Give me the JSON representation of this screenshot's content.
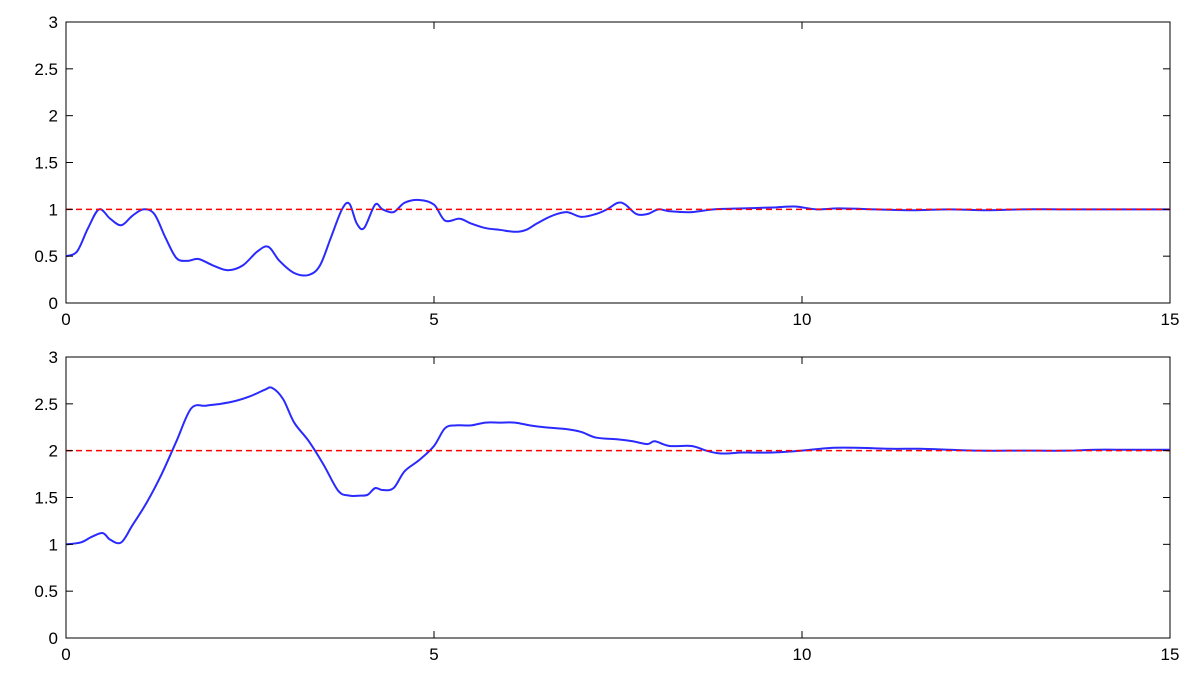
{
  "chart_data": [
    {
      "type": "line",
      "title": "",
      "xlabel": "",
      "ylabel": "",
      "xlim": [
        0,
        15
      ],
      "ylim": [
        0,
        3
      ],
      "x_ticks": [
        0,
        5,
        10,
        15
      ],
      "x_tick_labels": [
        "0",
        "5",
        "10",
        "15"
      ],
      "y_ticks": [
        0,
        0.5,
        1,
        1.5,
        2,
        2.5,
        3
      ],
      "y_tick_labels": [
        "0",
        "0.5",
        "1",
        "1.5",
        "2",
        "2.5",
        "3"
      ],
      "grid": false,
      "series": [
        {
          "color": "#2a2aff",
          "style": "solid",
          "x": [
            0,
            0.15,
            0.3,
            0.45,
            0.6,
            0.75,
            0.9,
            1.05,
            1.2,
            1.35,
            1.5,
            1.65,
            1.8,
            2.0,
            2.2,
            2.4,
            2.6,
            2.75,
            2.9,
            3.1,
            3.3,
            3.45,
            3.6,
            3.75,
            3.85,
            3.95,
            4.05,
            4.2,
            4.3,
            4.45,
            4.6,
            4.8,
            5.0,
            5.15,
            5.35,
            5.5,
            5.7,
            5.9,
            6.1,
            6.25,
            6.4,
            6.6,
            6.8,
            7.0,
            7.2,
            7.35,
            7.5,
            7.6,
            7.75,
            7.9,
            8.05,
            8.2,
            8.5,
            8.8,
            9.2,
            9.6,
            9.9,
            10.2,
            10.5,
            11.0,
            11.5,
            12.0,
            12.5,
            13.0,
            13.5,
            14.0,
            14.5,
            15.0
          ],
          "y": [
            0.5,
            0.55,
            0.8,
            1.0,
            0.9,
            0.83,
            0.93,
            1.0,
            0.95,
            0.7,
            0.48,
            0.45,
            0.47,
            0.4,
            0.35,
            0.4,
            0.55,
            0.6,
            0.45,
            0.32,
            0.3,
            0.4,
            0.7,
            1.0,
            1.06,
            0.85,
            0.8,
            1.05,
            1.0,
            0.97,
            1.07,
            1.1,
            1.05,
            0.88,
            0.9,
            0.85,
            0.8,
            0.78,
            0.76,
            0.78,
            0.85,
            0.93,
            0.97,
            0.92,
            0.95,
            1.0,
            1.07,
            1.05,
            0.95,
            0.95,
            1.0,
            0.98,
            0.97,
            1.0,
            1.01,
            1.02,
            1.03,
            1.0,
            1.01,
            1.0,
            0.99,
            1.0,
            0.99,
            1.0,
            1.0,
            1.0,
            1.0,
            1.0
          ]
        },
        {
          "color": "#ff0000",
          "style": "dashed",
          "x": [
            0,
            15
          ],
          "y": [
            1,
            1
          ]
        }
      ]
    },
    {
      "type": "line",
      "title": "",
      "xlabel": "",
      "ylabel": "",
      "xlim": [
        0,
        15
      ],
      "ylim": [
        0,
        3
      ],
      "x_ticks": [
        0,
        5,
        10,
        15
      ],
      "x_tick_labels": [
        "0",
        "5",
        "10",
        "15"
      ],
      "y_ticks": [
        0,
        0.5,
        1,
        1.5,
        2,
        2.5,
        3
      ],
      "y_tick_labels": [
        "0",
        "0.5",
        "1",
        "1.5",
        "2",
        "2.5",
        "3"
      ],
      "grid": false,
      "series": [
        {
          "color": "#2a2aff",
          "style": "solid",
          "x": [
            0,
            0.2,
            0.35,
            0.5,
            0.6,
            0.75,
            0.9,
            1.1,
            1.3,
            1.5,
            1.7,
            1.9,
            2.1,
            2.3,
            2.5,
            2.7,
            2.8,
            2.95,
            3.1,
            3.3,
            3.5,
            3.7,
            3.85,
            4.0,
            4.1,
            4.2,
            4.3,
            4.45,
            4.6,
            4.8,
            5.0,
            5.15,
            5.3,
            5.5,
            5.7,
            5.9,
            6.1,
            6.3,
            6.5,
            6.8,
            7.0,
            7.2,
            7.5,
            7.7,
            7.9,
            8.0,
            8.2,
            8.5,
            8.7,
            8.9,
            9.2,
            9.6,
            10.0,
            10.4,
            10.8,
            11.2,
            11.6,
            12.0,
            12.4,
            12.8,
            13.2,
            13.6,
            14.0,
            14.4,
            14.8,
            15.0
          ],
          "y": [
            1.0,
            1.02,
            1.08,
            1.12,
            1.05,
            1.02,
            1.2,
            1.45,
            1.75,
            2.1,
            2.45,
            2.48,
            2.5,
            2.53,
            2.58,
            2.65,
            2.67,
            2.55,
            2.3,
            2.1,
            1.85,
            1.57,
            1.52,
            1.52,
            1.53,
            1.6,
            1.58,
            1.6,
            1.78,
            1.9,
            2.05,
            2.24,
            2.27,
            2.27,
            2.3,
            2.3,
            2.3,
            2.27,
            2.25,
            2.23,
            2.2,
            2.14,
            2.12,
            2.1,
            2.07,
            2.1,
            2.05,
            2.05,
            2.0,
            1.97,
            1.98,
            1.98,
            2.0,
            2.03,
            2.03,
            2.02,
            2.02,
            2.01,
            2.0,
            2.0,
            2.0,
            2.0,
            2.01,
            2.01,
            2.01,
            2.01
          ]
        },
        {
          "color": "#ff0000",
          "style": "dashed",
          "x": [
            0,
            15
          ],
          "y": [
            2,
            2
          ]
        }
      ]
    }
  ]
}
